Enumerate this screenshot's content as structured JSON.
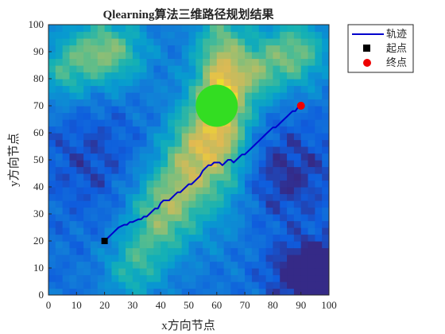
{
  "chart_data": {
    "type": "heatmap",
    "title": "Qlearning算法三维路径规划结果",
    "xlabel": "x方向节点",
    "ylabel": "y方向节点",
    "xlim": [
      0,
      100
    ],
    "ylim": [
      0,
      100
    ],
    "xticks": [
      "0",
      "10",
      "20",
      "30",
      "40",
      "50",
      "60",
      "70",
      "80",
      "90",
      "100"
    ],
    "yticks": [
      "0",
      "10",
      "20",
      "30",
      "40",
      "50",
      "60",
      "70",
      "80",
      "90",
      "100"
    ],
    "grid": false,
    "legend_position": "outside-top-right",
    "colormap": "parula",
    "obstacle": {
      "x": 60,
      "y": 70,
      "r": 7.5,
      "color": "#33dd22"
    },
    "series": [
      {
        "name": "轨迹",
        "type": "line",
        "color": "#0000cc",
        "x": [
          19.5,
          20,
          21,
          22,
          23,
          24,
          25,
          26,
          27,
          28,
          29,
          30,
          31,
          32,
          33,
          34,
          35,
          36,
          37,
          38,
          39,
          40,
          41,
          42,
          43,
          44,
          45,
          46,
          47,
          48,
          49,
          50,
          51,
          52,
          53,
          54,
          55,
          56,
          57,
          58,
          59,
          60,
          61,
          62,
          63,
          64,
          65,
          66,
          67,
          68,
          69,
          70,
          71,
          72,
          73,
          74,
          75,
          76,
          77,
          78,
          79,
          80,
          81,
          82,
          83,
          84,
          85,
          86,
          87,
          88,
          89,
          90
        ],
        "y": [
          20.5,
          20,
          21,
          22,
          23,
          24,
          25,
          25.5,
          26,
          26,
          27,
          27,
          27.5,
          28,
          28,
          29,
          29,
          30,
          31,
          32,
          32,
          34,
          35,
          35,
          35,
          36,
          37,
          38,
          38,
          39,
          40,
          41,
          41,
          42,
          43,
          44,
          46,
          47,
          48,
          48,
          49,
          49,
          49,
          48,
          49,
          50,
          50,
          49,
          50,
          51,
          52,
          52,
          53,
          54,
          55,
          56,
          57,
          58,
          59,
          60,
          61,
          62,
          62,
          63,
          64,
          65,
          66,
          67,
          68,
          68,
          69.5,
          70
        ]
      },
      {
        "name": "起点",
        "type": "marker",
        "color": "#000000",
        "x": [
          20
        ],
        "y": [
          20
        ]
      },
      {
        "name": "终点",
        "type": "marker",
        "color": "#ee0000",
        "x": [
          90
        ],
        "y": [
          70
        ]
      }
    ]
  }
}
